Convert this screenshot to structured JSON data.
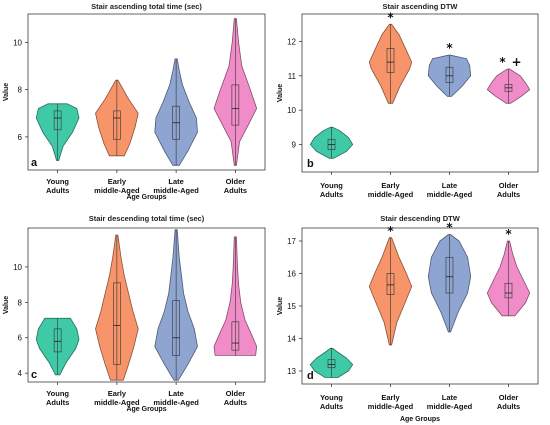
{
  "chart_data": [
    {
      "type": "violin",
      "panel_label": "a",
      "title": "Stair ascending total time (sec)",
      "xlabel": "Age Groups",
      "ylabel": "Value",
      "ylim": [
        4.6,
        11.2
      ],
      "yticks": [
        6,
        8,
        10
      ],
      "categories": [
        "Young\nAdults",
        "Early\nmiddle-Aged",
        "Late\nmiddle-Aged",
        "Older\nAdults"
      ],
      "colors": [
        "#3fc9a6",
        "#f7946a",
        "#8ea4d1",
        "#f08cc8"
      ],
      "series": [
        {
          "min": 5.0,
          "q1": 6.3,
          "median": 6.8,
          "q3": 7.1,
          "max": 7.4,
          "profile": [
            [
              5.0,
              0.05
            ],
            [
              5.6,
              0.25
            ],
            [
              6.2,
              0.7
            ],
            [
              6.8,
              1.0
            ],
            [
              7.2,
              0.9
            ],
            [
              7.4,
              0.45
            ]
          ]
        },
        {
          "min": 5.2,
          "q1": 5.9,
          "median": 6.8,
          "q3": 7.1,
          "max": 8.4,
          "profile": [
            [
              5.2,
              0.35
            ],
            [
              5.7,
              0.6
            ],
            [
              6.4,
              0.85
            ],
            [
              7.0,
              1.0
            ],
            [
              7.6,
              0.55
            ],
            [
              8.0,
              0.3
            ],
            [
              8.4,
              0.05
            ]
          ]
        },
        {
          "min": 4.8,
          "q1": 5.9,
          "median": 6.6,
          "q3": 7.3,
          "max": 9.3,
          "profile": [
            [
              4.8,
              0.15
            ],
            [
              5.4,
              0.55
            ],
            [
              6.2,
              1.0
            ],
            [
              6.8,
              0.95
            ],
            [
              7.5,
              0.6
            ],
            [
              8.2,
              0.3
            ],
            [
              8.8,
              0.15
            ],
            [
              9.3,
              0.05
            ]
          ]
        },
        {
          "min": 4.8,
          "q1": 6.5,
          "median": 7.2,
          "q3": 8.2,
          "max": 11.0,
          "profile": [
            [
              4.8,
              0.05
            ],
            [
              5.8,
              0.2
            ],
            [
              6.5,
              0.6
            ],
            [
              7.2,
              1.0
            ],
            [
              8.0,
              0.7
            ],
            [
              9.0,
              0.3
            ],
            [
              10.0,
              0.15
            ],
            [
              11.0,
              0.05
            ]
          ]
        }
      ],
      "annotations": []
    },
    {
      "type": "violin",
      "panel_label": "b",
      "title": "Stair ascending DTW",
      "xlabel": "",
      "ylabel": "Value",
      "ylim": [
        8.2,
        12.8
      ],
      "yticks": [
        9,
        10,
        11,
        12
      ],
      "categories": [
        "Young\nAdults",
        "Early\nmiddle-Aged",
        "Late\nmiddle-Aged",
        "Older\nAdults"
      ],
      "colors": [
        "#3fc9a6",
        "#f7946a",
        "#8ea4d1",
        "#f08cc8"
      ],
      "series": [
        {
          "min": 8.6,
          "q1": 8.85,
          "median": 9.0,
          "q3": 9.15,
          "max": 9.5,
          "profile": [
            [
              8.6,
              0.1
            ],
            [
              8.8,
              0.7
            ],
            [
              9.0,
              1.0
            ],
            [
              9.2,
              0.8
            ],
            [
              9.4,
              0.4
            ],
            [
              9.5,
              0.05
            ]
          ]
        },
        {
          "min": 10.2,
          "q1": 11.1,
          "median": 11.4,
          "q3": 11.8,
          "max": 12.5,
          "profile": [
            [
              10.2,
              0.1
            ],
            [
              10.7,
              0.45
            ],
            [
              11.2,
              0.9
            ],
            [
              11.4,
              1.0
            ],
            [
              11.8,
              0.7
            ],
            [
              12.2,
              0.4
            ],
            [
              12.5,
              0.05
            ]
          ]
        },
        {
          "min": 10.4,
          "q1": 10.8,
          "median": 11.0,
          "q3": 11.25,
          "max": 11.6,
          "profile": [
            [
              10.4,
              0.1
            ],
            [
              10.7,
              0.6
            ],
            [
              11.0,
              1.0
            ],
            [
              11.3,
              0.95
            ],
            [
              11.5,
              0.8
            ],
            [
              11.6,
              0.05
            ]
          ]
        },
        {
          "min": 10.2,
          "q1": 10.55,
          "median": 10.65,
          "q3": 10.75,
          "max": 11.2,
          "profile": [
            [
              10.2,
              0.1
            ],
            [
              10.4,
              0.6
            ],
            [
              10.6,
              1.0
            ],
            [
              10.8,
              0.8
            ],
            [
              11.0,
              0.55
            ],
            [
              11.2,
              0.05
            ]
          ]
        }
      ],
      "annotations": [
        {
          "category_index": 1,
          "text": "*"
        },
        {
          "category_index": 2,
          "text": "*"
        },
        {
          "category_index": 3,
          "text": "*"
        },
        {
          "category_index": 3,
          "text": "+"
        }
      ]
    },
    {
      "type": "violin",
      "panel_label": "c",
      "title": "Stair descending total time (sec)",
      "xlabel": "Age Groups",
      "ylabel": "Value",
      "ylim": [
        3.5,
        12.2
      ],
      "yticks": [
        4,
        6,
        8,
        10
      ],
      "categories": [
        "Young\nAdults",
        "Early\nmiddle-Aged",
        "Late\nmiddle-Aged",
        "Older\nAdults"
      ],
      "colors": [
        "#3fc9a6",
        "#f7946a",
        "#8ea4d1",
        "#f08cc8"
      ],
      "series": [
        {
          "min": 3.9,
          "q1": 5.2,
          "median": 5.8,
          "q3": 6.5,
          "max": 7.1,
          "profile": [
            [
              3.9,
              0.1
            ],
            [
              4.6,
              0.4
            ],
            [
              5.4,
              0.85
            ],
            [
              5.9,
              1.0
            ],
            [
              6.5,
              0.9
            ],
            [
              7.1,
              0.6
            ]
          ]
        },
        {
          "min": 3.6,
          "q1": 4.5,
          "median": 6.7,
          "q3": 9.1,
          "max": 11.8,
          "profile": [
            [
              3.6,
              0.3
            ],
            [
              4.5,
              0.55
            ],
            [
              5.5,
              0.8
            ],
            [
              6.5,
              1.0
            ],
            [
              7.5,
              0.75
            ],
            [
              8.5,
              0.55
            ],
            [
              9.5,
              0.35
            ],
            [
              10.5,
              0.2
            ],
            [
              11.8,
              0.05
            ]
          ]
        },
        {
          "min": 3.6,
          "q1": 5.0,
          "median": 6.0,
          "q3": 8.1,
          "max": 12.1,
          "profile": [
            [
              3.6,
              0.1
            ],
            [
              4.5,
              0.55
            ],
            [
              5.5,
              1.0
            ],
            [
              6.5,
              0.85
            ],
            [
              7.5,
              0.55
            ],
            [
              8.5,
              0.35
            ],
            [
              9.5,
              0.25
            ],
            [
              10.5,
              0.15
            ],
            [
              12.1,
              0.05
            ]
          ]
        },
        {
          "min": 5.0,
          "q1": 5.3,
          "median": 5.7,
          "q3": 6.9,
          "max": 11.7,
          "profile": [
            [
              5.0,
              0.95
            ],
            [
              5.5,
              1.0
            ],
            [
              6.2,
              0.75
            ],
            [
              7.0,
              0.45
            ],
            [
              8.0,
              0.25
            ],
            [
              9.0,
              0.15
            ],
            [
              10.0,
              0.1
            ],
            [
              11.7,
              0.05
            ]
          ]
        }
      ],
      "annotations": []
    },
    {
      "type": "violin",
      "panel_label": "d",
      "title": "Stair descending DTW",
      "xlabel": "Age Groups",
      "ylabel": "Value",
      "ylim": [
        12.6,
        17.4
      ],
      "yticks": [
        13,
        14,
        15,
        16,
        17
      ],
      "categories": [
        "Young\nAdults",
        "Early\nmiddle-Aged",
        "Late\nmiddle-Aged",
        "Older\nAdults"
      ],
      "colors": [
        "#3fc9a6",
        "#f7946a",
        "#8ea4d1",
        "#f08cc8"
      ],
      "series": [
        {
          "min": 12.8,
          "q1": 13.1,
          "median": 13.2,
          "q3": 13.35,
          "max": 13.7,
          "profile": [
            [
              12.8,
              0.3
            ],
            [
              13.0,
              0.8
            ],
            [
              13.2,
              1.0
            ],
            [
              13.4,
              0.7
            ],
            [
              13.6,
              0.25
            ],
            [
              13.7,
              0.05
            ]
          ]
        },
        {
          "min": 13.8,
          "q1": 15.35,
          "median": 15.65,
          "q3": 16.0,
          "max": 17.1,
          "profile": [
            [
              13.8,
              0.05
            ],
            [
              14.5,
              0.3
            ],
            [
              15.2,
              0.75
            ],
            [
              15.6,
              1.0
            ],
            [
              16.0,
              0.75
            ],
            [
              16.5,
              0.4
            ],
            [
              17.1,
              0.05
            ]
          ]
        },
        {
          "min": 14.2,
          "q1": 15.4,
          "median": 15.9,
          "q3": 16.5,
          "max": 17.2,
          "profile": [
            [
              14.2,
              0.05
            ],
            [
              14.8,
              0.4
            ],
            [
              15.4,
              0.85
            ],
            [
              15.9,
              1.0
            ],
            [
              16.5,
              0.85
            ],
            [
              17.0,
              0.45
            ],
            [
              17.2,
              0.05
            ]
          ]
        },
        {
          "min": 14.7,
          "q1": 15.25,
          "median": 15.4,
          "q3": 15.7,
          "max": 17.0,
          "profile": [
            [
              14.7,
              0.3
            ],
            [
              15.1,
              0.8
            ],
            [
              15.4,
              1.0
            ],
            [
              15.8,
              0.7
            ],
            [
              16.2,
              0.4
            ],
            [
              16.6,
              0.2
            ],
            [
              17.0,
              0.05
            ]
          ]
        }
      ],
      "annotations": [
        {
          "category_index": 1,
          "text": "*"
        },
        {
          "category_index": 2,
          "text": "*"
        },
        {
          "category_index": 3,
          "text": "*"
        }
      ]
    }
  ]
}
